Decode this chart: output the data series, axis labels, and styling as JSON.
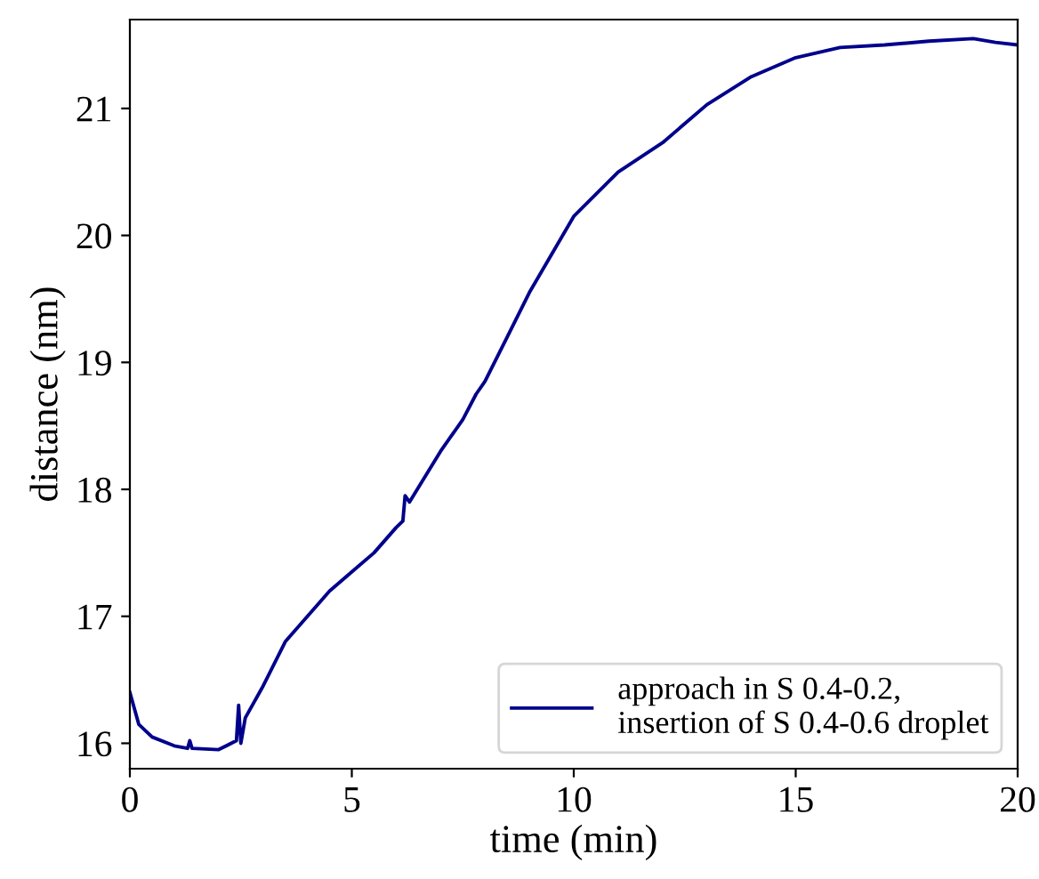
{
  "chart_data": {
    "type": "line",
    "xlabel": "time (min)",
    "ylabel": "distance (nm)",
    "xlim": [
      0,
      20
    ],
    "ylim": [
      15.8,
      21.7
    ],
    "xticks": [
      0,
      5,
      10,
      15,
      20
    ],
    "yticks": [
      16,
      17,
      18,
      19,
      20,
      21
    ],
    "grid": false,
    "legend": "lower right",
    "series": [
      {
        "name": "approach in S 0.4-0.2,\ninsertion of S 0.4-0.6 droplet",
        "color": "#00008b",
        "x": [
          0,
          0.2,
          0.5,
          1.0,
          1.3,
          1.35,
          1.4,
          2.0,
          2.4,
          2.45,
          2.5,
          2.6,
          3.0,
          3.5,
          4.0,
          4.5,
          5.0,
          5.5,
          6.0,
          6.15,
          6.2,
          6.3,
          7.0,
          7.5,
          7.8,
          8.0,
          8.5,
          9.0,
          9.5,
          10,
          11,
          12,
          13,
          14,
          15,
          16,
          17,
          18,
          19,
          19.5,
          20
        ],
        "values": [
          16.4,
          16.15,
          16.05,
          15.98,
          15.96,
          16.02,
          15.96,
          15.95,
          16.02,
          16.3,
          16.0,
          16.2,
          16.45,
          16.8,
          17.0,
          17.2,
          17.35,
          17.5,
          17.7,
          17.75,
          17.95,
          17.9,
          18.3,
          18.55,
          18.75,
          18.85,
          19.2,
          19.55,
          19.85,
          20.15,
          20.5,
          20.73,
          21.03,
          21.25,
          21.4,
          21.48,
          21.5,
          21.53,
          21.55,
          21.52,
          21.5
        ]
      }
    ]
  }
}
